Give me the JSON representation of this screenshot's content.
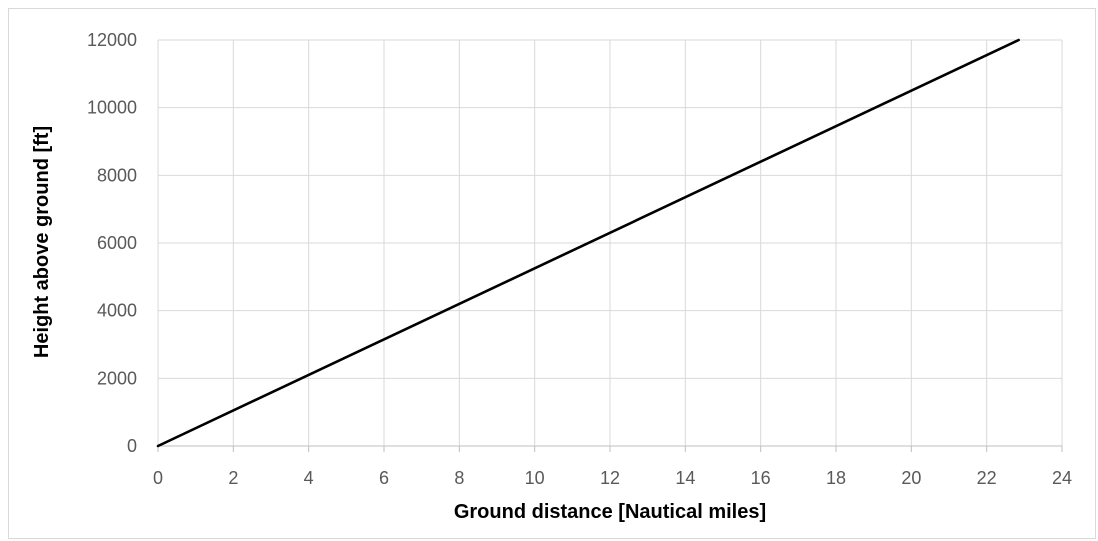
{
  "chart_data": {
    "type": "line",
    "title": "",
    "xlabel": "Ground distance [Nautical miles]",
    "ylabel": "Height above ground [ft]",
    "xlim": [
      0,
      24
    ],
    "ylim": [
      0,
      12000
    ],
    "x_ticks": [
      0,
      2,
      4,
      6,
      8,
      10,
      12,
      14,
      16,
      18,
      20,
      22,
      24
    ],
    "y_ticks": [
      0,
      2000,
      4000,
      6000,
      8000,
      10000,
      12000
    ],
    "x_tick_labels": [
      "0",
      "2",
      "4",
      "6",
      "8",
      "10",
      "12",
      "14",
      "16",
      "18",
      "20",
      "22",
      "24"
    ],
    "y_tick_labels": [
      "0",
      "2000",
      "4000",
      "6000",
      "8000",
      "10000",
      "12000"
    ],
    "grid": true,
    "legend": "none",
    "series": [
      {
        "color": "#000000",
        "x": [
          0,
          22.85
        ],
        "y": [
          0,
          12000
        ]
      }
    ],
    "colors": {
      "grid": "#d9d9d9",
      "tick_text": "#595959",
      "axis_title": "#000000"
    }
  }
}
